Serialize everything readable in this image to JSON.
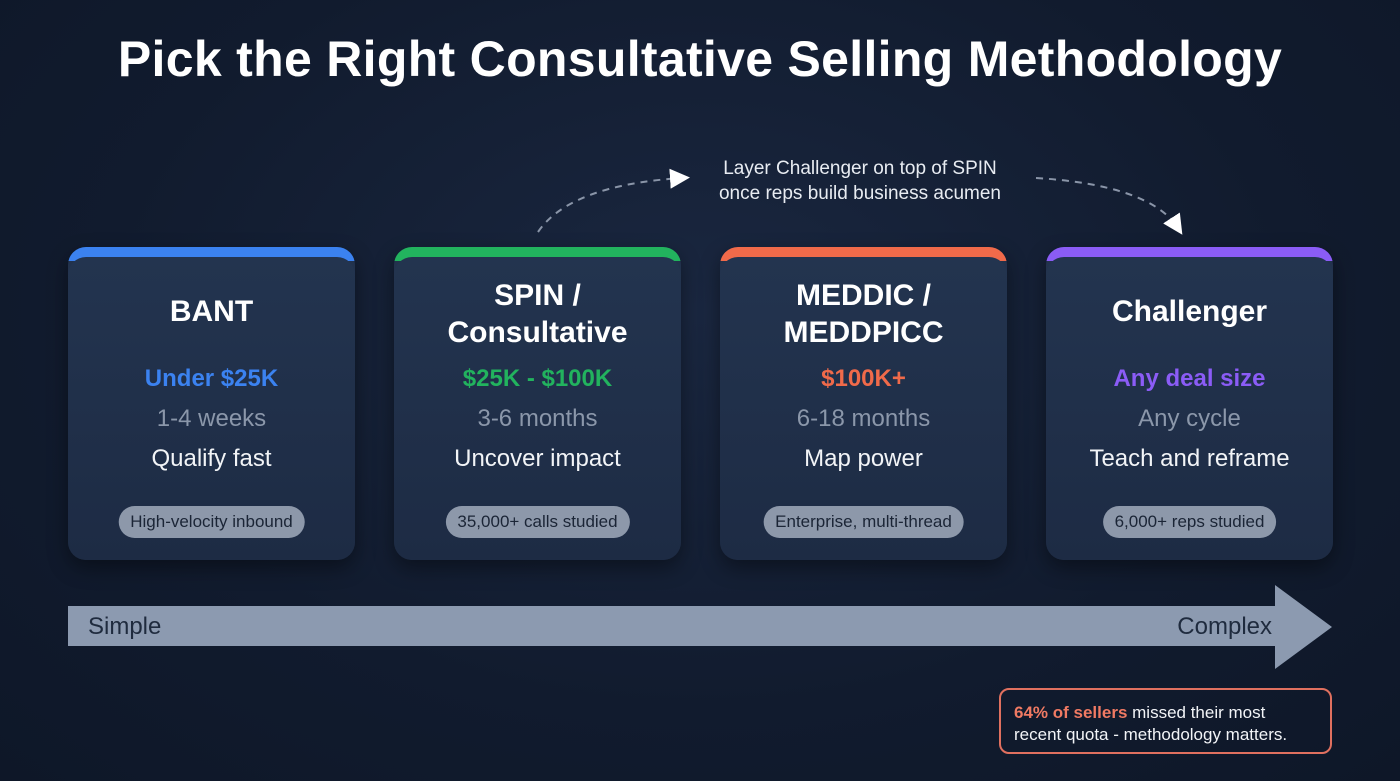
{
  "title": "Pick the Right Consultative Selling Methodology",
  "annotation": {
    "line1": "Layer Challenger on top of SPIN",
    "line2": "once reps build business acumen"
  },
  "cards": [
    {
      "name": "BANT",
      "name2": "",
      "price": "Under $25K",
      "cycle": "1-4 weeks",
      "goal": "Qualify fast",
      "tag": "High-velocity inbound",
      "color": "#3b82f0"
    },
    {
      "name": "SPIN /",
      "name2": "Consultative",
      "price": "$25K - $100K",
      "cycle": "3-6 months",
      "goal": "Uncover impact",
      "tag": "35,000+ calls studied",
      "color": "#22b35e"
    },
    {
      "name": "MEDDIC /",
      "name2": "MEDDPICC",
      "price": "$100K+",
      "cycle": "6-18 months",
      "goal": "Map power",
      "tag": "Enterprise, multi-thread",
      "color": "#f06a4a"
    },
    {
      "name": "Challenger",
      "name2": "",
      "price": "Any deal size",
      "cycle": "Any cycle",
      "goal": "Teach and reframe",
      "tag": "6,000+ reps studied",
      "color": "#8b5cf6"
    }
  ],
  "scale": {
    "left": "Simple",
    "right": "Complex"
  },
  "callout": {
    "highlight": "64% of sellers",
    "rest1": " missed their most",
    "rest2": "recent quota - methodology matters."
  }
}
